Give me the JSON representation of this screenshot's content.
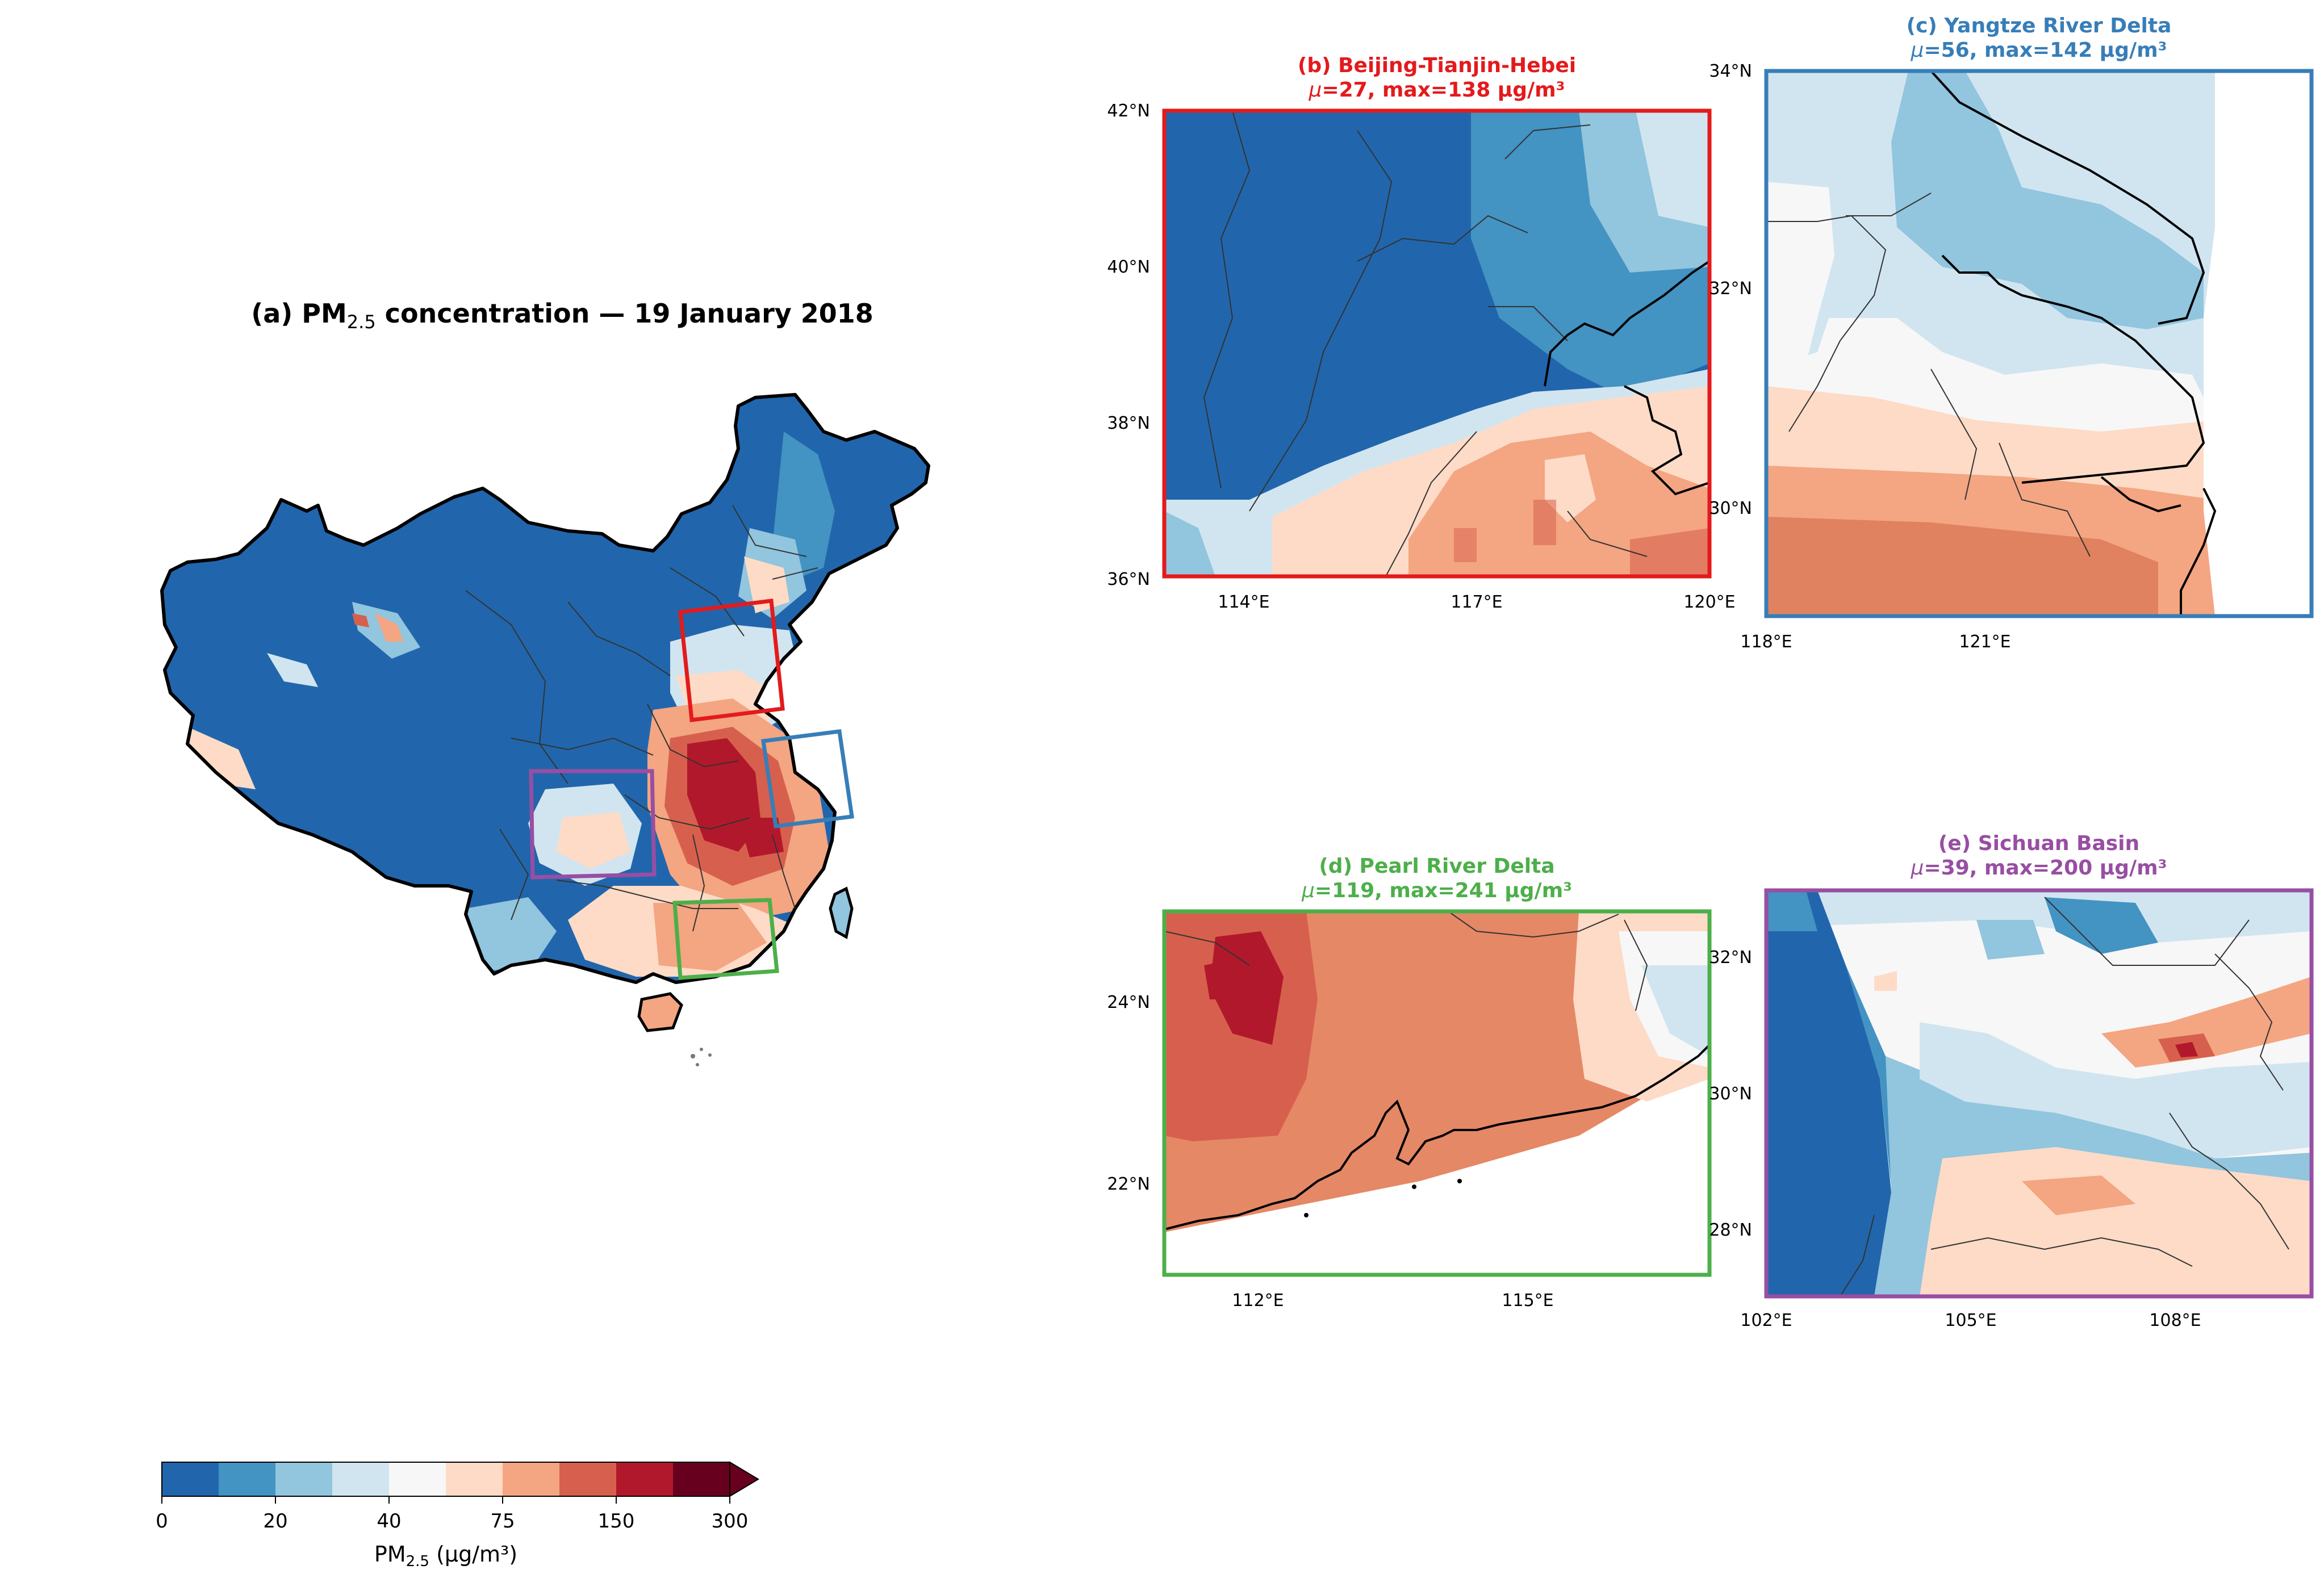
{
  "colors": {
    "beijing": "#e41a1c",
    "yangtze": "#377eb8",
    "pearl": "#4daf4a",
    "sichuan": "#984ea3",
    "cmap": [
      "#2166ac",
      "#4393c3",
      "#92c5de",
      "#d1e5f0",
      "#f7f7f7",
      "#fddbc7",
      "#f4a582",
      "#d6604d",
      "#b2182b",
      "#67001f"
    ]
  },
  "main": {
    "title_prefix": "(a) PM",
    "title_sub": "2.5",
    "title_suffix": " concentration — 19 January 2018"
  },
  "colorbar": {
    "ticks": [
      "0",
      "20",
      "40",
      "75",
      "150",
      "300"
    ],
    "label_prefix": "PM",
    "label_sub": "2.5",
    "label_suffix": " (μg/m³)"
  },
  "panels": {
    "b": {
      "title": "(b) Beijing-Tianjin-Hebei",
      "stats_mu": "μ",
      "stats_rest": "=27, max=138 μg/m³",
      "xticks": [
        "114°E",
        "117°E",
        "120°E"
      ],
      "yticks": [
        "42°N",
        "40°N",
        "38°N",
        "36°N"
      ]
    },
    "c": {
      "title": "(c) Yangtze River Delta",
      "stats_mu": "μ",
      "stats_rest": "=56, max=142 μg/m³",
      "xticks": [
        "118°E",
        "121°E"
      ],
      "yticks": [
        "34°N",
        "32°N",
        "30°N"
      ]
    },
    "d": {
      "title": "(d) Pearl River Delta",
      "stats_mu": "μ",
      "stats_rest": "=119, max=241 μg/m³",
      "xticks": [
        "112°E",
        "115°E"
      ],
      "yticks": [
        "24°N",
        "22°N"
      ]
    },
    "e": {
      "title": "(e) Sichuan Basin",
      "stats_mu": "μ",
      "stats_rest": "=39, max=200 μg/m³",
      "xticks": [
        "102°E",
        "105°E",
        "108°E"
      ],
      "yticks": [
        "32°N",
        "30°N",
        "28°N"
      ]
    }
  }
}
